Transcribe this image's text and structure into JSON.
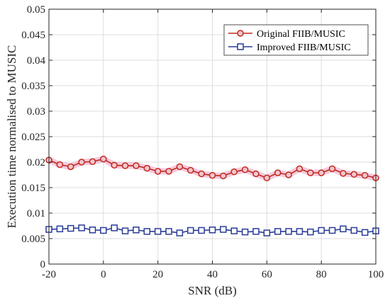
{
  "chart_data": {
    "type": "line",
    "xlabel": "SNR (dB)",
    "ylabel": "Execution time normalised to MUSIC",
    "xlim": [
      -20,
      100
    ],
    "ylim": [
      0,
      0.05
    ],
    "x_ticks": [
      "-20",
      "0",
      "20",
      "40",
      "60",
      "80",
      "100"
    ],
    "y_ticks": [
      "0",
      "0.005",
      "0.01",
      "0.015",
      "0.02",
      "0.025",
      "0.03",
      "0.035",
      "0.04",
      "0.045",
      "0.05"
    ],
    "grid": true,
    "legend_position": "top-right",
    "x": [
      -20,
      -16,
      -12,
      -8,
      -4,
      0,
      4,
      8,
      12,
      16,
      20,
      24,
      28,
      32,
      36,
      40,
      44,
      48,
      52,
      56,
      60,
      64,
      68,
      72,
      76,
      80,
      84,
      88,
      92,
      96,
      100
    ],
    "series": [
      {
        "name": "Original FIIB/MUSIC",
        "color": "#c0281e",
        "marker": "circle",
        "values": [
          0.0204,
          0.0195,
          0.0191,
          0.02,
          0.0201,
          0.0206,
          0.0194,
          0.0193,
          0.0193,
          0.0188,
          0.0182,
          0.0182,
          0.0191,
          0.0184,
          0.0177,
          0.0174,
          0.0173,
          0.0181,
          0.0185,
          0.0177,
          0.0169,
          0.0179,
          0.0175,
          0.0187,
          0.0179,
          0.0179,
          0.0187,
          0.0178,
          0.0176,
          0.0174,
          0.0169
        ]
      },
      {
        "name": "Improved FIIB/MUSIC",
        "color": "#2a3c96",
        "marker": "square",
        "values": [
          0.0068,
          0.0069,
          0.007,
          0.0071,
          0.0067,
          0.0066,
          0.0071,
          0.0065,
          0.0067,
          0.0064,
          0.0064,
          0.0064,
          0.0061,
          0.0066,
          0.0066,
          0.0067,
          0.0068,
          0.0065,
          0.0063,
          0.0064,
          0.0061,
          0.0064,
          0.0064,
          0.0064,
          0.0063,
          0.0066,
          0.0066,
          0.0069,
          0.0066,
          0.0062,
          0.0065
        ]
      }
    ]
  }
}
